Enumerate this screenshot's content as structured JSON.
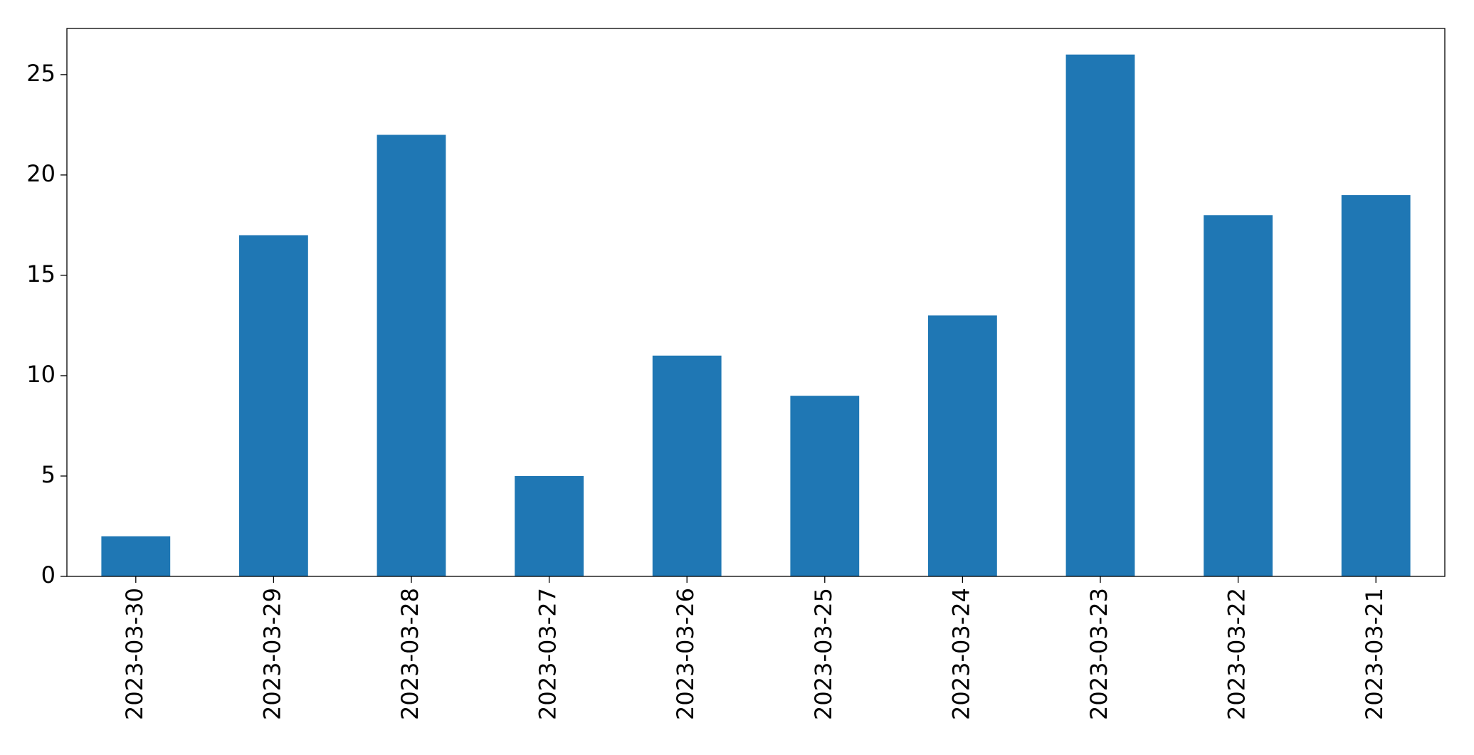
{
  "chart_data": {
    "type": "bar",
    "categories": [
      "2023-03-30",
      "2023-03-29",
      "2023-03-28",
      "2023-03-27",
      "2023-03-26",
      "2023-03-25",
      "2023-03-24",
      "2023-03-23",
      "2023-03-22",
      "2023-03-21"
    ],
    "values": [
      2,
      17,
      22,
      5,
      11,
      9,
      13,
      26,
      18,
      19
    ],
    "color": "#1f77b4",
    "ylim": [
      0,
      27.3
    ],
    "yticks": [
      0,
      5,
      10,
      15,
      20,
      25
    ],
    "grid": false
  }
}
